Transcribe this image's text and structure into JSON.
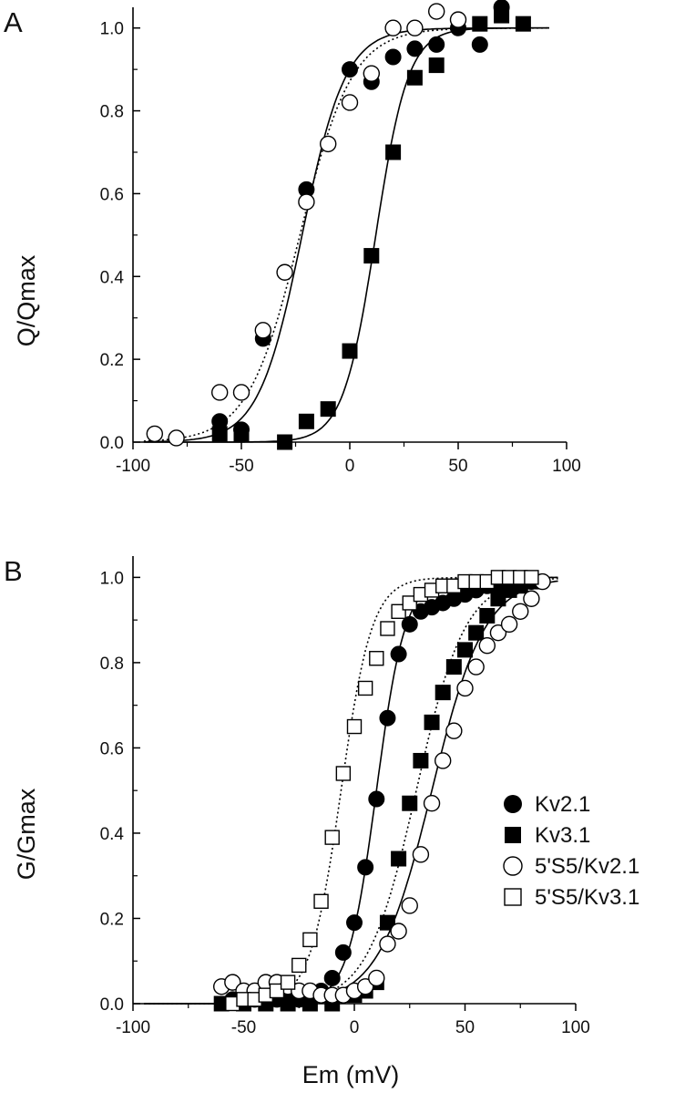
{
  "chart_data": [
    {
      "type": "scatter",
      "panel_label": "A",
      "xlabel": "",
      "ylabel": "Q/Qmax",
      "xlim": [
        -100,
        100
      ],
      "ylim": [
        0,
        1.05
      ],
      "xticks": [
        "-100",
        "-50",
        "0",
        "50",
        "100"
      ],
      "yticks": [
        "0.0",
        "0.2",
        "0.4",
        "0.6",
        "0.8",
        "1.0"
      ],
      "series": [
        {
          "marker": "filled-circle",
          "points": [
            [
              -60,
              0.05
            ],
            [
              -50,
              0.03
            ],
            [
              -40,
              0.25
            ],
            [
              -20,
              0.61
            ],
            [
              0,
              0.9
            ],
            [
              10,
              0.87
            ],
            [
              20,
              0.93
            ],
            [
              30,
              0.95
            ],
            [
              40,
              0.96
            ],
            [
              50,
              1.0
            ],
            [
              60,
              0.96
            ],
            [
              70,
              1.05
            ]
          ]
        },
        {
          "marker": "filled-square",
          "points": [
            [
              -60,
              0.02
            ],
            [
              -50,
              0.02
            ],
            [
              -30,
              0.0
            ],
            [
              -20,
              0.05
            ],
            [
              -10,
              0.08
            ],
            [
              0,
              0.22
            ],
            [
              10,
              0.45
            ],
            [
              20,
              0.7
            ],
            [
              30,
              0.88
            ],
            [
              40,
              0.91
            ],
            [
              60,
              1.01
            ],
            [
              70,
              1.03
            ],
            [
              80,
              1.01
            ]
          ]
        },
        {
          "marker": "open-circle",
          "points": [
            [
              -90,
              0.02
            ],
            [
              -80,
              0.01
            ],
            [
              -60,
              0.12
            ],
            [
              -50,
              0.12
            ],
            [
              -40,
              0.27
            ],
            [
              -30,
              0.41
            ],
            [
              -20,
              0.58
            ],
            [
              -10,
              0.72
            ],
            [
              0,
              0.82
            ],
            [
              10,
              0.89
            ],
            [
              20,
              1.0
            ],
            [
              30,
              1.0
            ],
            [
              40,
              1.04
            ],
            [
              50,
              1.02
            ]
          ]
        }
      ],
      "fits": [
        {
          "style": "solid",
          "vhalf": -22,
          "slope": 10
        },
        {
          "style": "dotted",
          "vhalf": -23,
          "slope": 12
        },
        {
          "style": "solid",
          "vhalf": 12,
          "slope": 7.5
        }
      ]
    },
    {
      "type": "scatter",
      "panel_label": "B",
      "xlabel": "Em (mV)",
      "ylabel": "G/Gmax",
      "xlim": [
        -100,
        100
      ],
      "ylim": [
        0,
        1.05
      ],
      "xticks": [
        "-100",
        "-50",
        "0",
        "50",
        "100"
      ],
      "yticks": [
        "0.0",
        "0.2",
        "0.4",
        "0.6",
        "0.8",
        "1.0"
      ],
      "legend_position": "right",
      "series": [
        {
          "name": "Kv2.1",
          "marker": "filled-circle",
          "points": [
            [
              -55,
              0.01
            ],
            [
              -50,
              0.01
            ],
            [
              -45,
              0.01
            ],
            [
              -40,
              0.01
            ],
            [
              -35,
              0.01
            ],
            [
              -30,
              0.01
            ],
            [
              -25,
              0.01
            ],
            [
              -20,
              0.02
            ],
            [
              -15,
              0.03
            ],
            [
              -10,
              0.06
            ],
            [
              -5,
              0.12
            ],
            [
              0,
              0.19
            ],
            [
              5,
              0.32
            ],
            [
              10,
              0.48
            ],
            [
              15,
              0.67
            ],
            [
              20,
              0.82
            ],
            [
              25,
              0.89
            ],
            [
              30,
              0.92
            ],
            [
              35,
              0.93
            ],
            [
              40,
              0.94
            ],
            [
              45,
              0.95
            ],
            [
              50,
              0.96
            ],
            [
              55,
              0.97
            ],
            [
              60,
              0.98
            ],
            [
              65,
              0.98
            ],
            [
              70,
              0.99
            ],
            [
              75,
              0.99
            ],
            [
              80,
              0.99
            ]
          ]
        },
        {
          "name": "Kv3.1",
          "marker": "filled-square",
          "points": [
            [
              -60,
              0.0
            ],
            [
              -50,
              0.0
            ],
            [
              -40,
              0.0
            ],
            [
              -30,
              0.0
            ],
            [
              -20,
              0.0
            ],
            [
              -10,
              0.0
            ],
            [
              0,
              0.02
            ],
            [
              5,
              0.03
            ],
            [
              10,
              0.05
            ],
            [
              15,
              0.19
            ],
            [
              20,
              0.34
            ],
            [
              25,
              0.47
            ],
            [
              30,
              0.57
            ],
            [
              35,
              0.66
            ],
            [
              40,
              0.73
            ],
            [
              45,
              0.79
            ],
            [
              50,
              0.83
            ],
            [
              55,
              0.87
            ],
            [
              60,
              0.91
            ],
            [
              65,
              0.95
            ],
            [
              70,
              0.97
            ],
            [
              75,
              0.98
            ],
            [
              80,
              0.99
            ]
          ]
        },
        {
          "name": "5'S5/Kv2.1",
          "marker": "open-circle",
          "points": [
            [
              -60,
              0.04
            ],
            [
              -55,
              0.05
            ],
            [
              -50,
              0.03
            ],
            [
              -45,
              0.03
            ],
            [
              -40,
              0.05
            ],
            [
              -35,
              0.05
            ],
            [
              -30,
              0.04
            ],
            [
              -25,
              0.03
            ],
            [
              -20,
              0.03
            ],
            [
              -15,
              0.02
            ],
            [
              -10,
              0.02
            ],
            [
              -5,
              0.02
            ],
            [
              0,
              0.03
            ],
            [
              5,
              0.04
            ],
            [
              10,
              0.06
            ],
            [
              15,
              0.14
            ],
            [
              20,
              0.17
            ],
            [
              25,
              0.23
            ],
            [
              30,
              0.35
            ],
            [
              35,
              0.47
            ],
            [
              40,
              0.57
            ],
            [
              45,
              0.64
            ],
            [
              50,
              0.74
            ],
            [
              55,
              0.79
            ],
            [
              60,
              0.84
            ],
            [
              65,
              0.87
            ],
            [
              70,
              0.89
            ],
            [
              75,
              0.92
            ],
            [
              80,
              0.95
            ],
            [
              85,
              0.99
            ]
          ]
        },
        {
          "name": "5'S5/Kv3.1",
          "marker": "open-square",
          "points": [
            [
              -55,
              0.0
            ],
            [
              -50,
              0.01
            ],
            [
              -45,
              0.01
            ],
            [
              -40,
              0.02
            ],
            [
              -35,
              0.03
            ],
            [
              -30,
              0.05
            ],
            [
              -25,
              0.09
            ],
            [
              -20,
              0.15
            ],
            [
              -15,
              0.24
            ],
            [
              -10,
              0.39
            ],
            [
              -5,
              0.54
            ],
            [
              0,
              0.65
            ],
            [
              5,
              0.74
            ],
            [
              10,
              0.81
            ],
            [
              15,
              0.88
            ],
            [
              20,
              0.92
            ],
            [
              25,
              0.94
            ],
            [
              30,
              0.96
            ],
            [
              35,
              0.97
            ],
            [
              40,
              0.98
            ],
            [
              45,
              0.98
            ],
            [
              50,
              0.99
            ],
            [
              55,
              0.99
            ],
            [
              60,
              0.99
            ],
            [
              65,
              1.0
            ],
            [
              70,
              1.0
            ],
            [
              75,
              1.0
            ],
            [
              80,
              1.0
            ]
          ]
        }
      ],
      "fits": [
        {
          "style": "solid",
          "vhalf": 10,
          "slope": 6.5
        },
        {
          "style": "dotted",
          "vhalf": -6,
          "slope": 7
        },
        {
          "style": "solid",
          "vhalf": 35,
          "slope": 12
        },
        {
          "style": "dotted",
          "vhalf": 28,
          "slope": 11
        }
      ]
    }
  ]
}
